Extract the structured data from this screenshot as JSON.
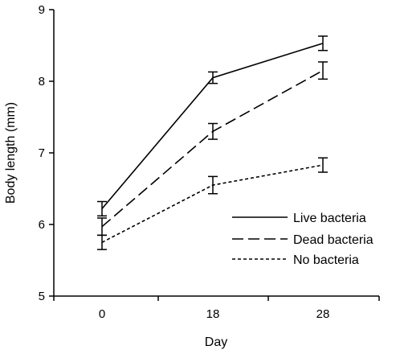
{
  "chart_data": {
    "type": "line",
    "title": "",
    "xlabel": "Day",
    "ylabel": "Body length (mm)",
    "categories": [
      "0",
      "18",
      "28"
    ],
    "ylim": [
      5,
      9
    ],
    "yticks": [
      "5",
      "6",
      "7",
      "8",
      "9"
    ],
    "grid": false,
    "legend_position": "bottom-right",
    "series": [
      {
        "name": "Live bacteria",
        "style": "solid",
        "values": [
          6.22,
          8.05,
          8.53
        ],
        "errors": [
          0.1,
          0.08,
          0.1
        ]
      },
      {
        "name": "Dead bacteria",
        "style": "dashed",
        "values": [
          5.97,
          7.3,
          8.15
        ],
        "errors": [
          0.12,
          0.11,
          0.12
        ]
      },
      {
        "name": "No bacteria",
        "style": "dotted",
        "values": [
          5.75,
          6.55,
          6.83
        ],
        "errors": [
          0.1,
          0.12,
          0.1
        ]
      }
    ],
    "colors": {
      "line": "#000000",
      "background": "#ffffff"
    }
  }
}
